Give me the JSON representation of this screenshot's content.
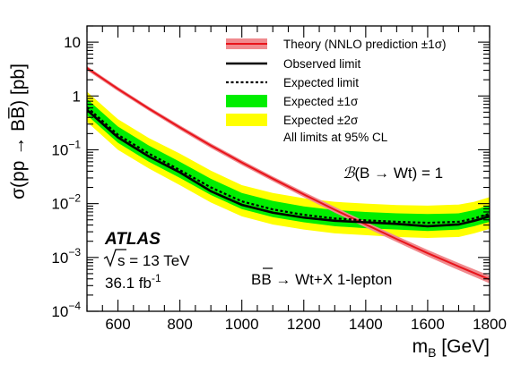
{
  "chart_data": {
    "type": "line",
    "xlabel_main": "m",
    "xlabel_sub": "B",
    "xlabel_unit": " [GeV]",
    "ylabel": "σ(pp → BB̅) [pb]",
    "xlim": [
      500,
      1800
    ],
    "ylim": [
      0.0001,
      20
    ],
    "yscale": "log",
    "x_ticks": [
      600,
      800,
      1000,
      1200,
      1400,
      1600,
      1800
    ],
    "y_ticks": [
      {
        "value": 10,
        "base": "10",
        "exp": ""
      },
      {
        "value": 1,
        "base": "1",
        "exp": ""
      },
      {
        "value": 0.1,
        "base": "10",
        "exp": "−1"
      },
      {
        "value": 0.01,
        "base": "10",
        "exp": "−2"
      },
      {
        "value": 0.001,
        "base": "10",
        "exp": "−3"
      },
      {
        "value": 0.0001,
        "base": "10",
        "exp": "−4"
      }
    ],
    "x": [
      500,
      600,
      700,
      800,
      900,
      1000,
      1100,
      1200,
      1300,
      1400,
      1500,
      1600,
      1700,
      1750,
      1800
    ],
    "series": [
      {
        "name": "Theory (NNLO prediction ±1σ)",
        "kind": "theory",
        "x": [
          500,
          600,
          700,
          800,
          900,
          1000,
          1100,
          1200,
          1300,
          1400,
          1500,
          1600,
          1700,
          1800
        ],
        "values": [
          3.3,
          1.35,
          0.58,
          0.26,
          0.12,
          0.058,
          0.029,
          0.0148,
          0.0077,
          0.0041,
          0.0022,
          0.0012,
          0.00068,
          0.00039
        ],
        "lo": [
          3.0,
          1.23,
          0.53,
          0.235,
          0.108,
          0.052,
          0.026,
          0.0132,
          0.0068,
          0.0036,
          0.00193,
          0.00104,
          0.00058,
          0.00033
        ],
        "hi": [
          3.6,
          1.47,
          0.63,
          0.285,
          0.132,
          0.064,
          0.032,
          0.0165,
          0.0087,
          0.0046,
          0.0025,
          0.00138,
          0.00079,
          0.00046
        ]
      },
      {
        "name": "Observed limit",
        "kind": "observed",
        "values": [
          0.55,
          0.17,
          0.075,
          0.038,
          0.017,
          0.0095,
          0.0068,
          0.0055,
          0.0048,
          0.0045,
          0.0042,
          0.0038,
          0.0041,
          0.0048,
          0.0058
        ]
      },
      {
        "name": "Expected limit",
        "kind": "expected",
        "values": [
          0.62,
          0.19,
          0.085,
          0.042,
          0.02,
          0.011,
          0.0078,
          0.0062,
          0.0053,
          0.0049,
          0.0046,
          0.0044,
          0.0046,
          0.0053,
          0.0065
        ]
      },
      {
        "name": "Expected ±1σ",
        "kind": "band1",
        "lo": [
          0.44,
          0.135,
          0.06,
          0.03,
          0.0145,
          0.0079,
          0.0056,
          0.0045,
          0.0038,
          0.0035,
          0.0033,
          0.0031,
          0.0033,
          0.0038,
          0.0046
        ],
        "hi": [
          0.88,
          0.27,
          0.12,
          0.06,
          0.029,
          0.0158,
          0.0112,
          0.0089,
          0.0076,
          0.007,
          0.0066,
          0.0064,
          0.0066,
          0.0076,
          0.0093
        ]
      },
      {
        "name": "Expected ±2σ",
        "kind": "band2",
        "lo": [
          0.33,
          0.1,
          0.045,
          0.022,
          0.0105,
          0.0058,
          0.0041,
          0.0033,
          0.0028,
          0.0026,
          0.0024,
          0.0023,
          0.0024,
          0.0028,
          0.0034
        ],
        "hi": [
          1.2,
          0.37,
          0.165,
          0.085,
          0.041,
          0.022,
          0.0158,
          0.0126,
          0.0108,
          0.01,
          0.0094,
          0.0092,
          0.0096,
          0.0108,
          0.0132
        ]
      }
    ],
    "colors": {
      "theory_line": "#e8141b",
      "theory_band": "#f08a8e",
      "band1": "#00ee00",
      "band2": "#ffff00",
      "observed": "#000000",
      "expected": "#000000"
    },
    "legend_placement": "top-right",
    "legend_note": "All limits at 95% CL",
    "annotations": {
      "br_script": "ℬ",
      "br_text": "(B → Wt) = 1",
      "atlas": "ATLAS",
      "sqrt_s": "s",
      "energy": " = 13 TeV",
      "lumi_value": "36.1 fb",
      "lumi_exp": "-1",
      "channel_pre": "BB",
      "channel_post": " → Wt+X 1-lepton"
    }
  }
}
